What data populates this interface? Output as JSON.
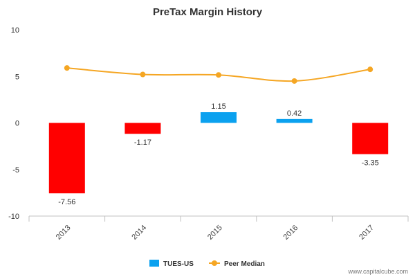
{
  "chart_data": {
    "type": "bar",
    "title": "PreTax Margin History",
    "categories": [
      "2013",
      "2014",
      "2015",
      "2016",
      "2017"
    ],
    "series": [
      {
        "name": "TUES-US",
        "type": "bar",
        "values": [
          -7.56,
          -1.17,
          1.15,
          0.42,
          -3.35
        ],
        "positive_color": "#0ba1ef",
        "negative_color": "#ff0000",
        "data_labels": [
          "-7.56",
          "-1.17",
          "1.15",
          "0.42",
          "-3.35"
        ]
      },
      {
        "name": "Peer Median",
        "type": "line",
        "values": [
          5.9,
          5.2,
          5.15,
          4.5,
          5.75
        ],
        "color": "#f5a623"
      }
    ],
    "yticks": [
      "10",
      "5",
      "0",
      "-5",
      "-10"
    ],
    "ylim": [
      -10,
      10
    ],
    "xlabel": "",
    "ylabel": "",
    "grid": false,
    "legend": "bottom-center"
  },
  "credit": "www.capitalcube.com"
}
